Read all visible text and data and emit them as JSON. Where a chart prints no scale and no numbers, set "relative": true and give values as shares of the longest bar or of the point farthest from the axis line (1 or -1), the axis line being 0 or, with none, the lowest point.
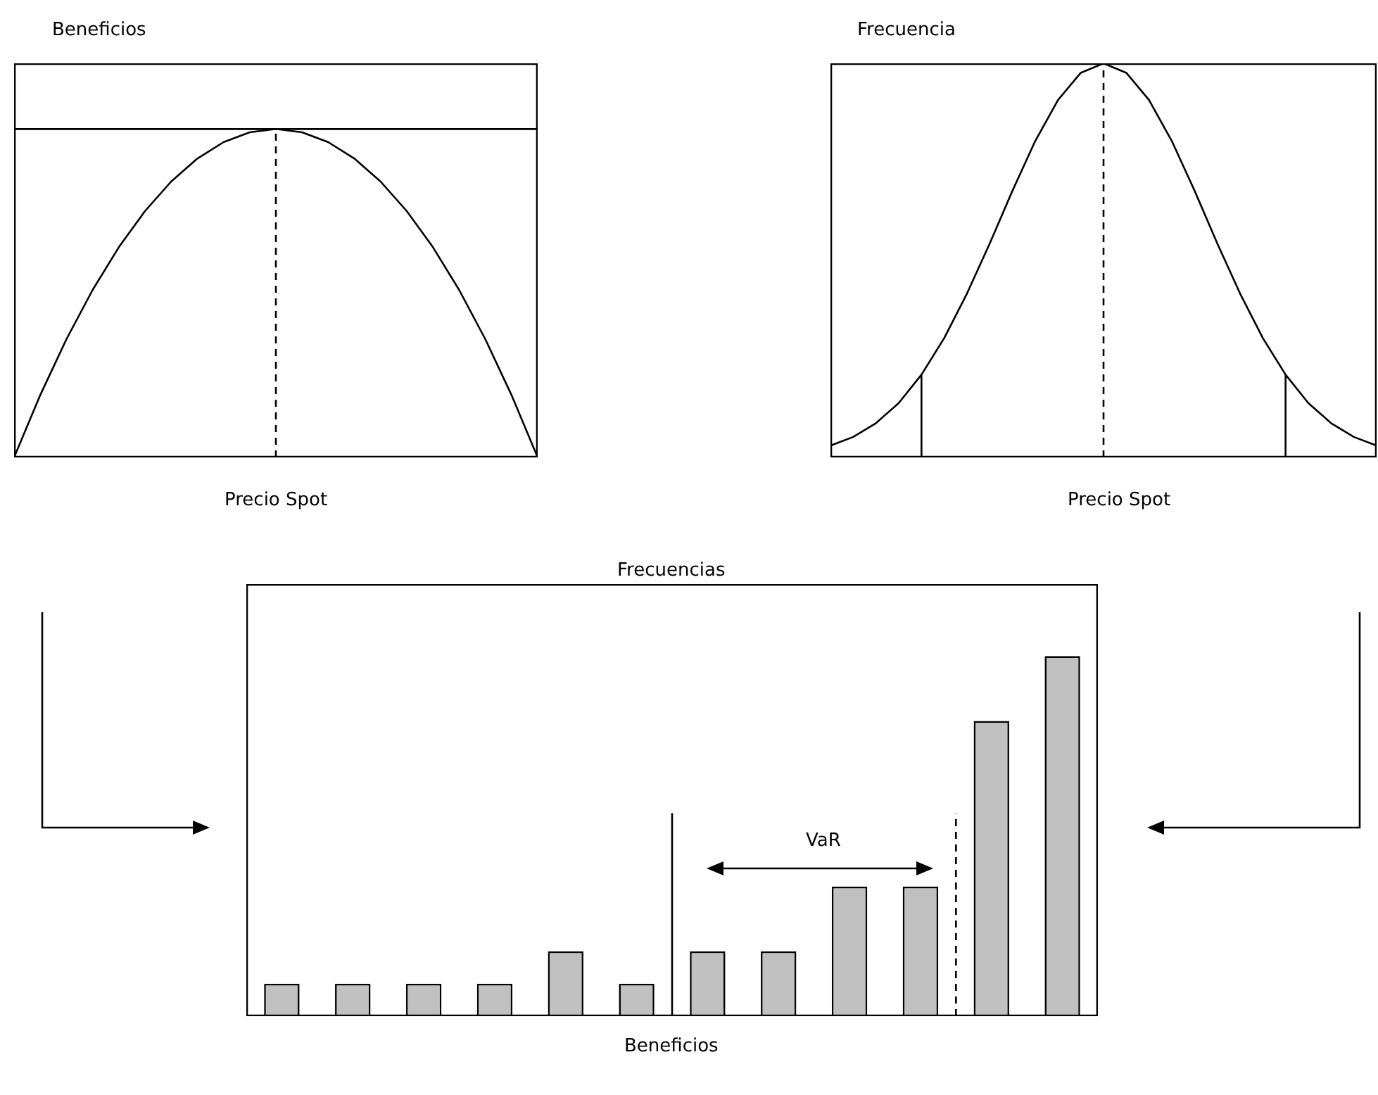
{
  "chart_data": [
    {
      "type": "line",
      "ylabel": "Beneficios",
      "xlabel": "Precio Spot",
      "relative": true,
      "marker": "none",
      "line_style": "solid",
      "categories": [
        null,
        null,
        null,
        null,
        null,
        null,
        null,
        null,
        null,
        null,
        null,
        null,
        null,
        null,
        null,
        null,
        null,
        null,
        null,
        null,
        null
      ],
      "series": [
        {
          "color": "#000000",
          "values": [
            0,
            0.19,
            0.36,
            0.51,
            0.64,
            0.75,
            0.84,
            0.91,
            0.96,
            0.99,
            1,
            0.99,
            0.96,
            0.91,
            0.84,
            0.75,
            0.64,
            0.51,
            0.36,
            0.19,
            0
          ]
        }
      ],
      "ref_lines": [
        {
          "axis": "y",
          "value": 1,
          "line_style": "solid",
          "color": "#000000"
        }
      ]
    },
    {
      "type": "line",
      "ylabel": "Frecuencia",
      "xlabel": "Precio Spot",
      "relative": true,
      "marker": "none",
      "line_style": "solid",
      "categories": [
        null,
        null,
        null,
        null,
        null,
        null,
        null,
        null,
        null,
        null,
        null,
        null,
        null,
        null,
        null,
        null,
        null,
        null,
        null,
        null,
        null,
        null,
        null,
        null,
        null
      ],
      "series": [
        {
          "color": "#000000",
          "values": [
            0.03,
            0.052,
            0.087,
            0.138,
            0.21,
            0.303,
            0.416,
            0.543,
            0.677,
            0.803,
            0.907,
            0.976,
            1,
            0.976,
            0.907,
            0.803,
            0.677,
            0.543,
            0.416,
            0.303,
            0.21,
            0.138,
            0.087,
            0.052,
            0.03
          ]
        }
      ]
    },
    {
      "type": "bar",
      "ylabel": "Frecuencias",
      "xlabel": "Beneficios",
      "relative": true,
      "categories": [
        null,
        null,
        null,
        null,
        null,
        null,
        null,
        null,
        null,
        null,
        null,
        null
      ],
      "series": [
        {
          "color": "#c0c0c0",
          "values": [
            0.09,
            0.09,
            0.09,
            0.09,
            0.18,
            0.09,
            0.18,
            0.18,
            0.36,
            0.36,
            0.82,
            1
          ]
        }
      ],
      "annotations": [
        "VaR"
      ]
    }
  ]
}
